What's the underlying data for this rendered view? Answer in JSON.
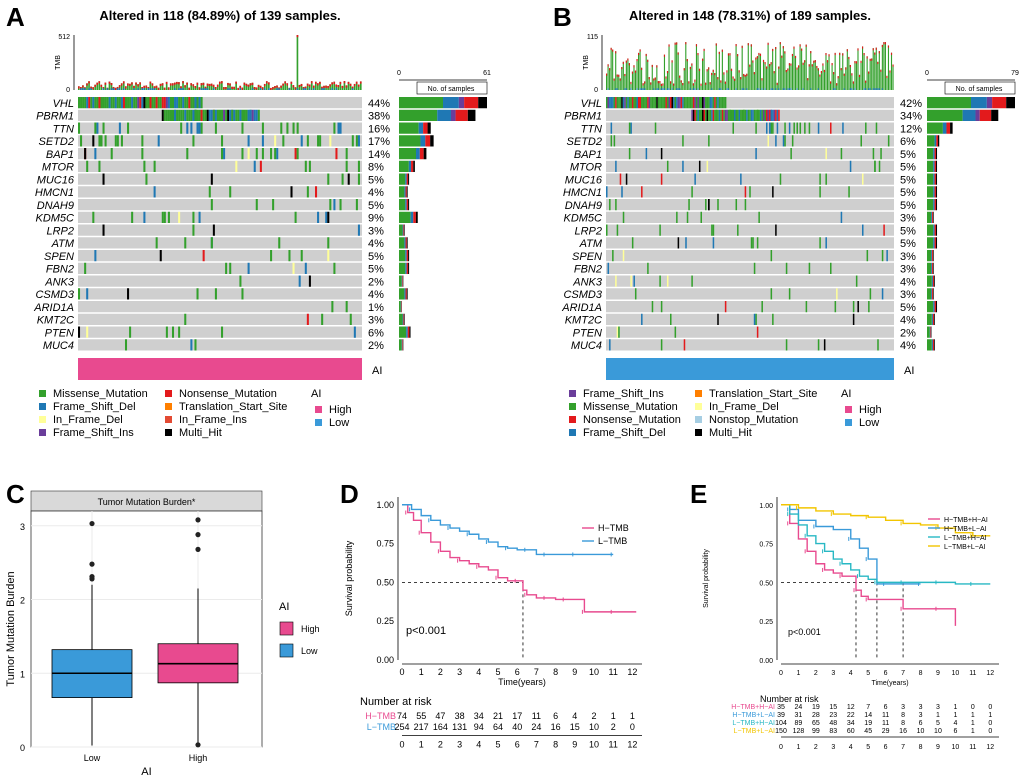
{
  "panel_labels": [
    "A",
    "B",
    "C",
    "D",
    "E"
  ],
  "colors": {
    "missense": "#33a02c",
    "frame_shift_del": "#1f78b4",
    "in_frame_del": "#ffff99",
    "frame_shift_ins": "#6a3d9a",
    "nonsense": "#e31a1c",
    "translation_start": "#ff7f00",
    "in_frame_ins": "#e34a33",
    "multi_hit": "#000000",
    "nonstop": "#a6cee3",
    "high": "#e84a8f",
    "low": "#3a9ad9",
    "grey": "#cfcfcf",
    "tmb_red": "#e31a1c"
  },
  "chart_data": [
    {
      "type": "oncoplot",
      "panel": "A",
      "title": "Altered in 118 (84.89%) of 139 samples.",
      "tmb_axis_label": "TMB",
      "tmb_ticks": [
        "512",
        "0"
      ],
      "samples_axis_ticks": [
        "0",
        "61"
      ],
      "samples_axis_label": "No. of samples",
      "genes": [
        {
          "name": "VHL",
          "pct": "44%",
          "count": 61
        },
        {
          "name": "PBRM1",
          "pct": "38%",
          "count": 53
        },
        {
          "name": "TTN",
          "pct": "16%",
          "count": 22
        },
        {
          "name": "SETD2",
          "pct": "17%",
          "count": 24
        },
        {
          "name": "BAP1",
          "pct": "14%",
          "count": 19
        },
        {
          "name": "MTOR",
          "pct": "8%",
          "count": 11
        },
        {
          "name": "MUC16",
          "pct": "5%",
          "count": 7
        },
        {
          "name": "HMCN1",
          "pct": "4%",
          "count": 6
        },
        {
          "name": "DNAH9",
          "pct": "5%",
          "count": 7
        },
        {
          "name": "KDM5C",
          "pct": "9%",
          "count": 13
        },
        {
          "name": "LRP2",
          "pct": "3%",
          "count": 4
        },
        {
          "name": "ATM",
          "pct": "4%",
          "count": 6
        },
        {
          "name": "SPEN",
          "pct": "5%",
          "count": 7
        },
        {
          "name": "FBN2",
          "pct": "5%",
          "count": 7
        },
        {
          "name": "ANK3",
          "pct": "2%",
          "count": 3
        },
        {
          "name": "CSMD3",
          "pct": "4%",
          "count": 6
        },
        {
          "name": "ARID1A",
          "pct": "1%",
          "count": 2
        },
        {
          "name": "KMT2C",
          "pct": "3%",
          "count": 4
        },
        {
          "name": "PTEN",
          "pct": "6%",
          "count": 8
        },
        {
          "name": "MUC4",
          "pct": "2%",
          "count": 3
        }
      ],
      "annotation_label": "AI",
      "annotation_group": "High",
      "legend_variants": [
        "Missense_Mutation",
        "Frame_Shift_Del",
        "In_Frame_Del",
        "Frame_Shift_Ins",
        "Nonsense_Mutation",
        "Translation_Start_Site",
        "In_Frame_Ins",
        "Multi_Hit"
      ],
      "legend_variant_keys": [
        "missense",
        "frame_shift_del",
        "in_frame_del",
        "frame_shift_ins",
        "nonsense",
        "translation_start",
        "in_frame_ins",
        "multi_hit"
      ],
      "legend_ai_title": "AI",
      "legend_ai": [
        "High",
        "Low"
      ]
    },
    {
      "type": "oncoplot",
      "panel": "B",
      "title": "Altered in 148 (78.31%) of 189 samples.",
      "tmb_axis_label": "TMB",
      "tmb_ticks": [
        "115",
        "0"
      ],
      "samples_axis_ticks": [
        "0",
        "79"
      ],
      "samples_axis_label": "No. of samples",
      "genes": [
        {
          "name": "VHL",
          "pct": "42%",
          "count": 79
        },
        {
          "name": "PBRM1",
          "pct": "34%",
          "count": 64
        },
        {
          "name": "TTN",
          "pct": "12%",
          "count": 23
        },
        {
          "name": "SETD2",
          "pct": "6%",
          "count": 11
        },
        {
          "name": "BAP1",
          "pct": "5%",
          "count": 9
        },
        {
          "name": "MTOR",
          "pct": "5%",
          "count": 9
        },
        {
          "name": "MUC16",
          "pct": "5%",
          "count": 9
        },
        {
          "name": "HMCN1",
          "pct": "5%",
          "count": 9
        },
        {
          "name": "DNAH9",
          "pct": "5%",
          "count": 9
        },
        {
          "name": "KDM5C",
          "pct": "3%",
          "count": 6
        },
        {
          "name": "LRP2",
          "pct": "5%",
          "count": 9
        },
        {
          "name": "ATM",
          "pct": "5%",
          "count": 9
        },
        {
          "name": "SPEN",
          "pct": "3%",
          "count": 6
        },
        {
          "name": "FBN2",
          "pct": "3%",
          "count": 6
        },
        {
          "name": "ANK3",
          "pct": "4%",
          "count": 7
        },
        {
          "name": "CSMD3",
          "pct": "3%",
          "count": 6
        },
        {
          "name": "ARID1A",
          "pct": "5%",
          "count": 9
        },
        {
          "name": "KMT2C",
          "pct": "4%",
          "count": 7
        },
        {
          "name": "PTEN",
          "pct": "2%",
          "count": 4
        },
        {
          "name": "MUC4",
          "pct": "4%",
          "count": 7
        }
      ],
      "annotation_label": "AI",
      "annotation_group": "Low",
      "legend_variants": [
        "Frame_Shift_Ins",
        "Missense_Mutation",
        "Nonsense_Mutation",
        "Frame_Shift_Del",
        "Translation_Start_Site",
        "In_Frame_Del",
        "Nonstop_Mutation",
        "Multi_Hit"
      ],
      "legend_variant_keys": [
        "frame_shift_ins",
        "missense",
        "nonsense",
        "frame_shift_del",
        "translation_start",
        "in_frame_del",
        "nonstop",
        "multi_hit"
      ],
      "legend_ai_title": "AI",
      "legend_ai": [
        "High",
        "Low"
      ]
    },
    {
      "type": "boxplot",
      "panel": "C",
      "title": "Tumor Mutation Burden*",
      "xlabel": "AI",
      "ylabel": "Tumor Mutation Burden",
      "ylim": [
        0,
        3.2
      ],
      "yticks": [
        0,
        1,
        2,
        3
      ],
      "categories": [
        "Low",
        "High"
      ],
      "boxes": [
        {
          "name": "Low",
          "min": 0.02,
          "q1": 0.67,
          "median": 1.0,
          "q3": 1.32,
          "max": 2.2,
          "outliers": [
            2.28,
            2.31,
            2.48,
            3.03
          ]
        },
        {
          "name": "High",
          "min": 0.01,
          "q1": 0.87,
          "median": 1.13,
          "q3": 1.4,
          "max": 2.15,
          "outliers": [
            0.03,
            2.68,
            2.88,
            3.08
          ]
        }
      ],
      "legend_title": "AI",
      "legend": [
        "High",
        "Low"
      ]
    },
    {
      "type": "line",
      "panel": "D",
      "subtype": "kaplan-meier",
      "xlabel": "Time(years)",
      "ylabel": "Survival probability",
      "xlim": [
        0,
        12.5
      ],
      "ylim": [
        0,
        1.05
      ],
      "xticks": [
        0,
        1,
        2,
        3,
        4,
        5,
        6,
        7,
        8,
        9,
        10,
        11,
        12
      ],
      "yticks": [
        "0.00",
        "0.25",
        "0.50",
        "0.75",
        "1.00"
      ],
      "pvalue": "p<0.001",
      "median_line_x": 6.3,
      "series": [
        {
          "name": "H−TMB",
          "color": "#e84a8f",
          "x": [
            0,
            0.3,
            0.6,
            1.0,
            1.5,
            2.0,
            2.5,
            3.0,
            3.5,
            4.0,
            4.5,
            5.0,
            5.5,
            6.0,
            6.3,
            6.5,
            7.0,
            7.5,
            8.0,
            8.5,
            9.0,
            9.5,
            10.0,
            11.0,
            12.2
          ],
          "y": [
            1.0,
            0.95,
            0.9,
            0.82,
            0.76,
            0.7,
            0.66,
            0.64,
            0.62,
            0.6,
            0.58,
            0.53,
            0.51,
            0.51,
            0.45,
            0.42,
            0.4,
            0.4,
            0.39,
            0.39,
            0.39,
            0.31,
            0.31,
            0.31,
            0.31
          ]
        },
        {
          "name": "L−TMB",
          "color": "#3a9ad9",
          "x": [
            0,
            0.5,
            1.0,
            1.5,
            2.0,
            2.5,
            3.0,
            3.5,
            4.0,
            4.5,
            5.0,
            5.5,
            6.0,
            6.5,
            7.0,
            7.5,
            8.0,
            9.0,
            10.0,
            11.0
          ],
          "y": [
            1.0,
            0.97,
            0.93,
            0.9,
            0.87,
            0.85,
            0.83,
            0.81,
            0.78,
            0.76,
            0.73,
            0.72,
            0.71,
            0.71,
            0.68,
            0.68,
            0.68,
            0.68,
            0.68,
            0.68
          ]
        }
      ],
      "risk_table_title": "Number at risk",
      "risk_table": [
        {
          "name": "H−TMB",
          "color": "#e84a8f",
          "values": [
            "74",
            "55",
            "47",
            "38",
            "34",
            "21",
            "17",
            "11",
            "6",
            "4",
            "2",
            "1",
            "1"
          ]
        },
        {
          "name": "L−TMB",
          "color": "#3a9ad9",
          "values": [
            "254",
            "217",
            "164",
            "131",
            "94",
            "64",
            "40",
            "24",
            "16",
            "15",
            "10",
            "2",
            "0"
          ]
        }
      ]
    },
    {
      "type": "line",
      "panel": "E",
      "subtype": "kaplan-meier",
      "xlabel": "Time(years)",
      "ylabel": "Survival probability",
      "xlim": [
        0,
        12.5
      ],
      "ylim": [
        0,
        1.05
      ],
      "xticks": [
        0,
        1,
        2,
        3,
        4,
        5,
        6,
        7,
        8,
        9,
        10,
        11,
        12
      ],
      "yticks": [
        "0.00",
        "0.25",
        "0.50",
        "0.75",
        "1.00"
      ],
      "pvalue": "p<0.001",
      "median_lines_x": [
        4.3,
        5.5,
        7.0
      ],
      "series": [
        {
          "name": "H−TMB+H−AI",
          "color": "#e84a8f",
          "x": [
            0,
            0.5,
            1.0,
            1.5,
            2.0,
            2.5,
            3.0,
            3.5,
            4.0,
            4.3,
            4.6,
            5.0,
            6.0,
            7.0,
            8.0,
            9.0,
            10.0
          ],
          "y": [
            1.0,
            0.88,
            0.78,
            0.7,
            0.62,
            0.58,
            0.56,
            0.54,
            0.54,
            0.45,
            0.41,
            0.39,
            0.39,
            0.33,
            0.33,
            0.33,
            0.22
          ]
        },
        {
          "name": "H−TMB+L−AI",
          "color": "#3a9ad9",
          "x": [
            0,
            0.5,
            1.0,
            2.0,
            3.0,
            4.0,
            4.5,
            5.0,
            5.5,
            6.0,
            7.0,
            8.0
          ],
          "y": [
            1.0,
            0.97,
            0.9,
            0.86,
            0.84,
            0.78,
            0.72,
            0.65,
            0.49,
            0.49,
            0.49,
            0.49
          ]
        },
        {
          "name": "L−TMB+H−AI",
          "color": "#28b8c4",
          "x": [
            0,
            0.5,
            1.0,
            1.5,
            2.0,
            2.5,
            3.0,
            3.5,
            4.0,
            4.5,
            5.0,
            5.5,
            6.0,
            7.0,
            8.0,
            9.0,
            10.0,
            11.0,
            12.0
          ],
          "y": [
            1.0,
            0.94,
            0.87,
            0.8,
            0.75,
            0.7,
            0.65,
            0.62,
            0.58,
            0.54,
            0.52,
            0.5,
            0.5,
            0.5,
            0.5,
            0.5,
            0.49,
            0.49,
            0.49
          ]
        },
        {
          "name": "L−TMB+L−AI",
          "color": "#f2c500",
          "x": [
            0,
            1.0,
            2.0,
            3.0,
            4.0,
            5.0,
            6.0,
            7.0,
            8.0,
            9.0,
            10.0,
            11.0,
            12.0
          ],
          "y": [
            1.0,
            0.98,
            0.96,
            0.94,
            0.93,
            0.92,
            0.9,
            0.88,
            0.87,
            0.85,
            0.82,
            0.8,
            0.8
          ]
        }
      ],
      "risk_table_title": "Number at risk",
      "risk_table": [
        {
          "name": "H−TMB+H−AI",
          "color": "#e84a8f",
          "values": [
            "35",
            "24",
            "19",
            "15",
            "12",
            "7",
            "6",
            "3",
            "3",
            "3",
            "1",
            "0",
            "0"
          ]
        },
        {
          "name": "H−TMB+L−AI",
          "color": "#3a9ad9",
          "values": [
            "39",
            "31",
            "28",
            "23",
            "22",
            "14",
            "11",
            "8",
            "3",
            "1",
            "1",
            "1",
            "1"
          ]
        },
        {
          "name": "L−TMB+H−AI",
          "color": "#28b8c4",
          "values": [
            "104",
            "89",
            "65",
            "48",
            "34",
            "19",
            "11",
            "8",
            "6",
            "5",
            "4",
            "1",
            "0"
          ]
        },
        {
          "name": "L−TMB+L−AI",
          "color": "#f2c500",
          "values": [
            "150",
            "128",
            "99",
            "83",
            "60",
            "45",
            "29",
            "16",
            "10",
            "10",
            "6",
            "1",
            "0"
          ]
        }
      ]
    }
  ]
}
